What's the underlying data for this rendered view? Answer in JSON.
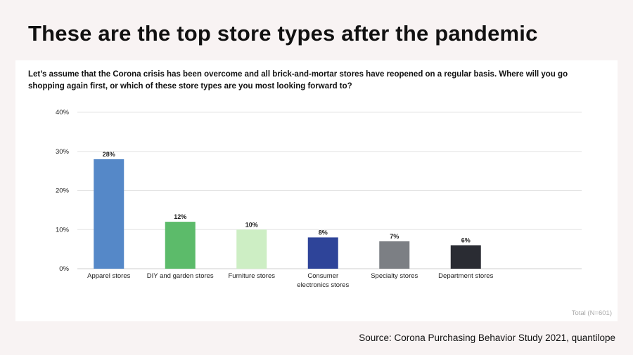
{
  "title": "These are the top store types after the pandemic",
  "question": "Let’s assume that the Corona crisis has been overcome and all brick-and-mortar stores have reopened on a regular basis. Where will you go shopping again first, or which of these store types are you most looking forward to?",
  "total_note": "Total (N=601)",
  "source": "Source: Corona Purchasing Behavior Study 2021, quantilope",
  "chart_data": {
    "type": "bar",
    "categories": [
      [
        "Apparel stores"
      ],
      [
        "DIY and garden stores"
      ],
      [
        "Furniture stores"
      ],
      [
        "Consumer",
        "electronics stores"
      ],
      [
        "Specialty stores"
      ],
      [
        "Department stores"
      ]
    ],
    "values": [
      28,
      12,
      10,
      8,
      7,
      6
    ],
    "value_labels": [
      "28%",
      "12%",
      "10%",
      "8%",
      "7%",
      "6%"
    ],
    "colors": [
      "#5588c8",
      "#5cbb6a",
      "#cdeec4",
      "#2e4499",
      "#7c7f84",
      "#2a2c33"
    ],
    "yticks": [
      "0%",
      "10%",
      "20%",
      "30%",
      "40%"
    ],
    "ylim": [
      0,
      40
    ],
    "grid": true
  }
}
